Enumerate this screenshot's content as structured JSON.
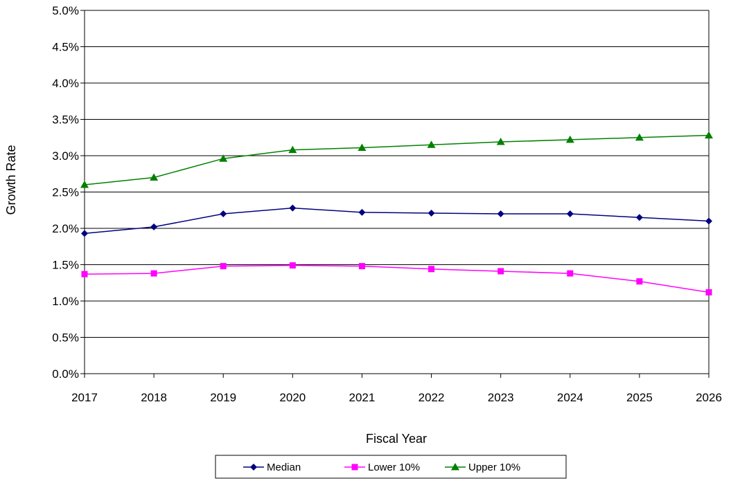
{
  "chart_data": {
    "type": "line",
    "xlabel": "Fiscal Year",
    "ylabel": "Growth Rate",
    "categories": [
      "2017",
      "2018",
      "2019",
      "2020",
      "2021",
      "2022",
      "2023",
      "2024",
      "2025",
      "2026"
    ],
    "ylim": [
      0,
      0.05
    ],
    "yticks": [
      "0.0%",
      "0.5%",
      "1.0%",
      "1.5%",
      "2.0%",
      "2.5%",
      "3.0%",
      "3.5%",
      "4.0%",
      "4.5%",
      "5.0%"
    ],
    "grid": true,
    "legend_position": "bottom",
    "series": [
      {
        "name": "Median",
        "color": "#000080",
        "marker": "diamond",
        "values": [
          0.0193,
          0.0202,
          0.022,
          0.0228,
          0.0222,
          0.0221,
          0.022,
          0.022,
          0.0215,
          0.021
        ]
      },
      {
        "name": "Lower 10%",
        "color": "#FF00FF",
        "marker": "square",
        "values": [
          0.0137,
          0.0138,
          0.0148,
          0.0149,
          0.0148,
          0.0144,
          0.0141,
          0.0138,
          0.0127,
          0.0112
        ]
      },
      {
        "name": "Upper 10%",
        "color": "#008000",
        "marker": "triangle",
        "values": [
          0.026,
          0.027,
          0.0296,
          0.0308,
          0.0311,
          0.0315,
          0.0319,
          0.0322,
          0.0325,
          0.0328
        ]
      }
    ]
  }
}
